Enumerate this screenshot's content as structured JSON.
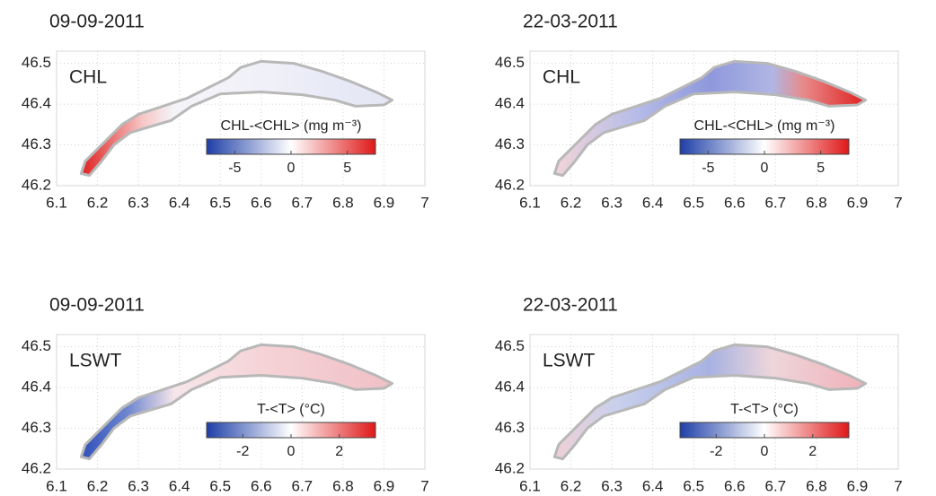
{
  "chart_data": [
    {
      "type": "map",
      "title": "09-09-2011",
      "label": "CHL",
      "colorbar_label": "CHL-<CHL> (mg m⁻³)",
      "xlim": [
        6.1,
        7
      ],
      "ylim": [
        46.2,
        46.53
      ],
      "xticks": [
        6.1,
        6.2,
        6.3,
        6.4,
        6.5,
        6.6,
        6.7,
        6.8,
        6.9,
        7
      ],
      "yticks": [
        46.2,
        46.3,
        46.4,
        46.5
      ],
      "clim": [
        -7.5,
        7.5
      ],
      "cticks": [
        -5,
        0,
        5
      ],
      "grid": true
    },
    {
      "type": "map",
      "title": "22-03-2011",
      "label": "CHL",
      "colorbar_label": "CHL-<CHL> (mg m⁻³)",
      "xlim": [
        6.1,
        7
      ],
      "ylim": [
        46.2,
        46.53
      ],
      "xticks": [
        6.1,
        6.2,
        6.3,
        6.4,
        6.5,
        6.6,
        6.7,
        6.8,
        6.9,
        7
      ],
      "yticks": [
        46.2,
        46.3,
        46.4,
        46.5
      ],
      "clim": [
        -7.5,
        7.5
      ],
      "cticks": [
        -5,
        0,
        5
      ],
      "grid": true
    },
    {
      "type": "map",
      "title": "09-09-2011",
      "label": "LSWT",
      "colorbar_label": "T-<T> (°C)",
      "xlim": [
        6.1,
        7
      ],
      "ylim": [
        46.2,
        46.53
      ],
      "xticks": [
        6.1,
        6.2,
        6.3,
        6.4,
        6.5,
        6.6,
        6.7,
        6.8,
        6.9,
        7
      ],
      "yticks": [
        46.2,
        46.3,
        46.4,
        46.5
      ],
      "clim": [
        -3.5,
        3.5
      ],
      "cticks": [
        -2,
        0,
        2
      ],
      "grid": true
    },
    {
      "type": "map",
      "title": "22-03-2011",
      "label": "LSWT",
      "colorbar_label": "T-<T> (°C)",
      "xlim": [
        6.1,
        7
      ],
      "ylim": [
        46.2,
        46.53
      ],
      "xticks": [
        6.1,
        6.2,
        6.3,
        6.4,
        6.5,
        6.6,
        6.7,
        6.8,
        6.9,
        7
      ],
      "yticks": [
        46.2,
        46.3,
        46.4,
        46.5
      ],
      "clim": [
        -3.5,
        3.5
      ],
      "cticks": [
        -2,
        0,
        2
      ],
      "grid": true
    }
  ]
}
